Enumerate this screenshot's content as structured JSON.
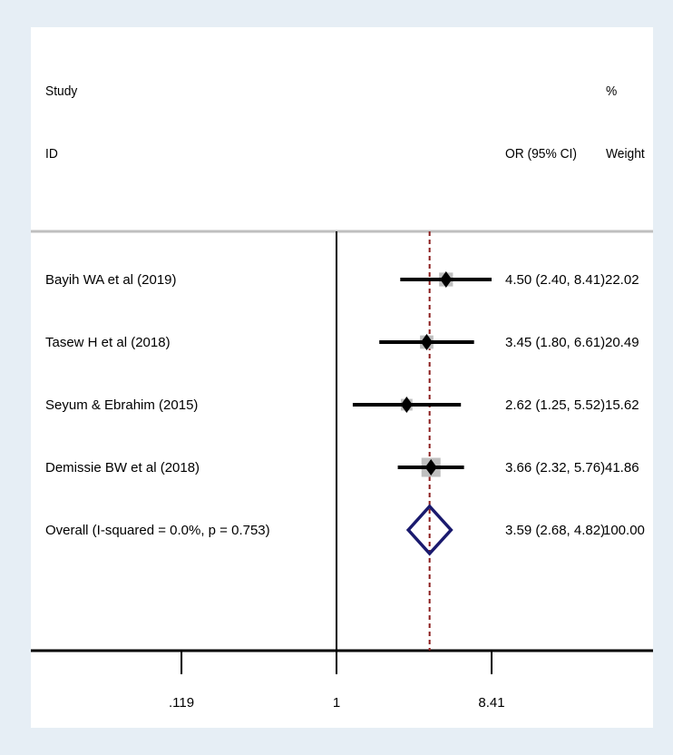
{
  "chart_data": {
    "type": "forest",
    "title": "",
    "xlabel": "",
    "ylabel": "",
    "scale": "log",
    "xlim": [
      0.119,
      8.41
    ],
    "x_ticks": [
      {
        "value": 0.119,
        "label": ".119"
      },
      {
        "value": 1,
        "label": "1"
      },
      {
        "value": 8.41,
        "label": "8.41"
      }
    ],
    "null_line": 1,
    "pooled_line": 3.59,
    "header": {
      "study": "Study",
      "id": "ID",
      "ci": "OR (95% CI)",
      "pct": "%",
      "weight": "Weight"
    },
    "studies": [
      {
        "label": "Bayih WA et al (2019)",
        "or": 4.5,
        "lo": 2.4,
        "hi": 8.41,
        "ci_text": "4.50 (2.40, 8.41)",
        "weight": 22.02,
        "weight_text": "22.02"
      },
      {
        "label": "Tasew H et al (2018)",
        "or": 3.45,
        "lo": 1.8,
        "hi": 6.61,
        "ci_text": "3.45 (1.80, 6.61)",
        "weight": 20.49,
        "weight_text": "20.49"
      },
      {
        "label": "Seyum & Ebrahim (2015)",
        "or": 2.62,
        "lo": 1.25,
        "hi": 5.52,
        "ci_text": "2.62 (1.25, 5.52)",
        "weight": 15.62,
        "weight_text": "15.62"
      },
      {
        "label": "Demissie BW et al  (2018)",
        "or": 3.66,
        "lo": 2.32,
        "hi": 5.76,
        "ci_text": "3.66 (2.32, 5.76)",
        "weight": 41.86,
        "weight_text": "41.86"
      }
    ],
    "overall": {
      "label": "Overall  (I-squared = 0.0%, p = 0.753)",
      "or": 3.59,
      "lo": 2.68,
      "hi": 4.82,
      "ci_text": "3.59 (2.68, 4.82)",
      "weight_text": "100.00"
    },
    "colors": {
      "marker": "#000000",
      "weight_box": "#bfbfbf",
      "pooled_diamond": "#1a1a6e",
      "pooled_line": "#8b1c1c",
      "separator": "#bfbfbf",
      "background": "#e6eef5"
    }
  }
}
